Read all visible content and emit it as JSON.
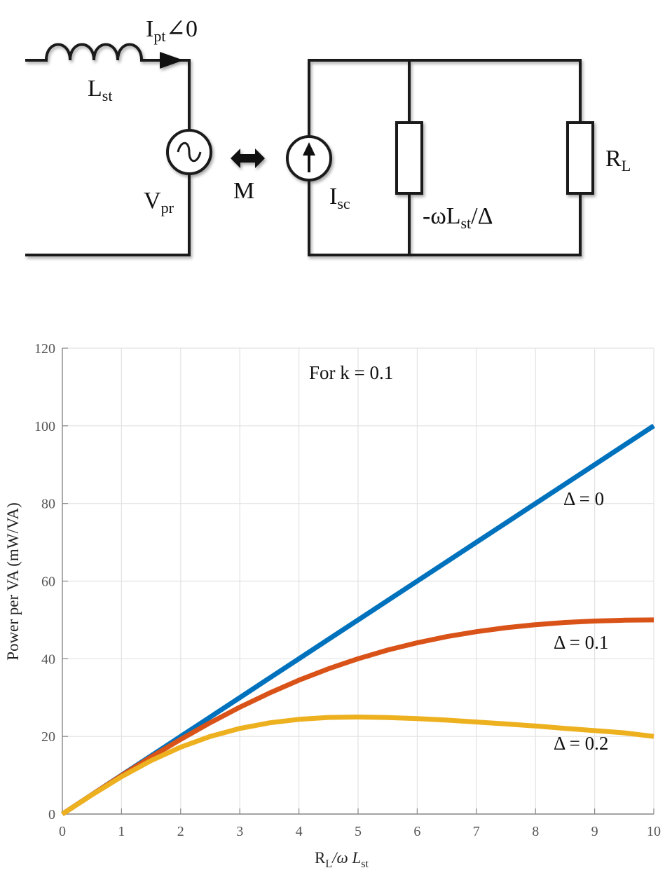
{
  "circuit": {
    "labels": {
      "current_main": "I",
      "current_sub": "pt",
      "current_angle": "∠0",
      "inductor_main": "L",
      "inductor_sub": "st",
      "source_main": "V",
      "source_sub": "pr",
      "coupling": "M",
      "csource_main": "I",
      "csource_sub": "sc",
      "impedance_pre": "-ωL",
      "impedance_sub": "st",
      "impedance_post": "/Δ",
      "load_main": "R",
      "load_sub": "L"
    }
  },
  "chart_data": {
    "type": "line",
    "title": "",
    "annotation": "For k = 0.1",
    "xlabel": {
      "main": "R",
      "sub1": "L",
      "mid": "/ω L",
      "sub2": "st"
    },
    "ylabel": "Power per VA (mW/VA)",
    "xlim": [
      0,
      10
    ],
    "ylim": [
      0,
      120
    ],
    "xticks": [
      "0",
      "1",
      "2",
      "3",
      "4",
      "5",
      "6",
      "7",
      "8",
      "9",
      "10"
    ],
    "yticks": [
      "0",
      "20",
      "40",
      "60",
      "80",
      "100",
      "120"
    ],
    "grid": true,
    "x": [
      0,
      0.5,
      1,
      1.5,
      2,
      2.5,
      3,
      3.5,
      4,
      4.5,
      5,
      5.5,
      6,
      6.5,
      7,
      7.5,
      8,
      8.5,
      9,
      9.5,
      10
    ],
    "series": [
      {
        "name": "Δ = 0",
        "color": "#0072BD",
        "values": [
          0,
          5,
          10,
          15,
          20,
          25,
          30,
          35,
          40,
          45,
          50,
          55,
          60,
          65,
          70,
          75,
          80,
          85,
          90,
          95,
          100
        ]
      },
      {
        "name": "Δ = 0.1",
        "color": "#D95319",
        "values": [
          0,
          4.99,
          9.9,
          14.68,
          19.23,
          23.53,
          27.52,
          31.17,
          34.48,
          37.42,
          40.0,
          42.24,
          44.12,
          45.7,
          46.98,
          48.0,
          48.78,
          49.35,
          49.72,
          49.93,
          50.0
        ]
      },
      {
        "name": "Δ = 0.2",
        "color": "#EDB120",
        "values": [
          0,
          4.95,
          9.62,
          13.76,
          17.24,
          20.0,
          22.06,
          23.49,
          24.39,
          24.88,
          25.0,
          24.87,
          24.59,
          24.19,
          23.72,
          23.2,
          22.69,
          22.07,
          21.5,
          20.91,
          20.0
        ]
      }
    ],
    "labels": [
      "Δ = 0",
      "Δ = 0.1",
      "Δ = 0.2"
    ]
  }
}
